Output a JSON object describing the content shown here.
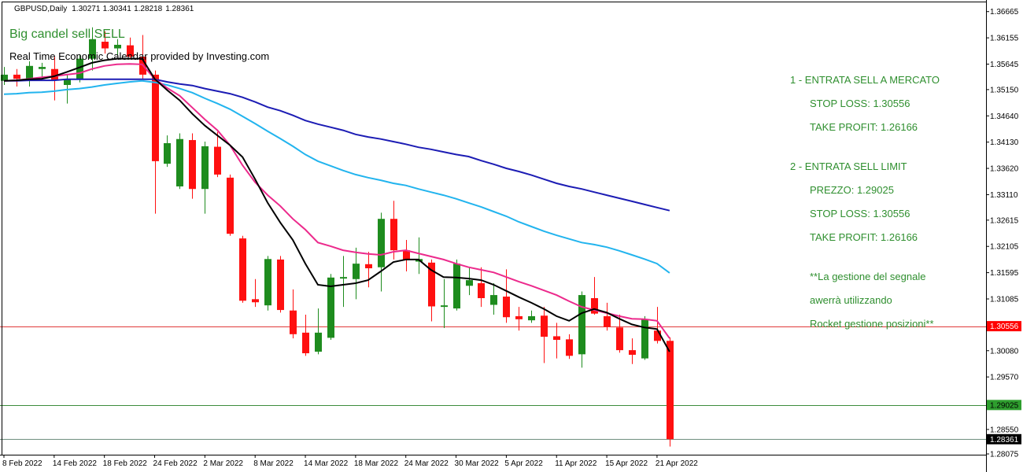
{
  "header": {
    "symbol": "GBPUSD,Daily",
    "ohlc": [
      1.30271,
      1.30341,
      1.28218,
      1.28361
    ]
  },
  "texts": {
    "signal": "Big candel sell SELL",
    "calendar": "Real Time Economic Calendar provided by Investing.com"
  },
  "annotations": [
    "1 - ENTRATA SELL A MERCATO",
    "STOP LOSS: 1.30556",
    "TAKE PROFIT: 1.26166",
    "2 - ENTRATA SELL LIMIT",
    "PREZZO: 1.29025",
    "STOP LOSS: 1.30556",
    "TAKE PROFIT: 1.26166",
    "**La gestione del segnale",
    "awerrà utilizzando",
    "Rocket gestione posizioni**"
  ],
  "chart_data": {
    "type": "candlestick",
    "categories": [
      "8 Feb 2022",
      null,
      null,
      null,
      "14 Feb 2022",
      null,
      null,
      null,
      "18 Feb 2022",
      null,
      null,
      null,
      "24 Feb 2022",
      null,
      null,
      null,
      "2 Mar 2022",
      null,
      null,
      null,
      "8 Mar 2022",
      null,
      null,
      null,
      "14 Mar 2022",
      null,
      null,
      null,
      "18 Mar 2022",
      null,
      null,
      null,
      "24 Mar 2022",
      null,
      null,
      null,
      "30 Mar 2022",
      null,
      null,
      null,
      "5 Apr 2022",
      null,
      null,
      null,
      "11 Apr 2022",
      null,
      null,
      null,
      "15 Apr 2022",
      null,
      null,
      null,
      "21 Apr 2022",
      null
    ],
    "open": [
      1.3532,
      1.3544,
      1.3536,
      1.3555,
      1.3555,
      1.3524,
      1.3534,
      1.3575,
      1.3608,
      1.3595,
      1.3601,
      1.3579,
      1.3544,
      1.3371,
      1.3327,
      1.3417,
      1.3322,
      1.3404,
      1.3344,
      1.3226,
      1.3108,
      1.3096,
      1.3185,
      1.3086,
      1.3043,
      1.3006,
      1.3033,
      1.3148,
      1.3147,
      1.3176,
      1.317,
      1.3264,
      1.3203,
      1.3181,
      1.3179,
      1.3093,
      1.309,
      1.3134,
      1.3139,
      1.3097,
      1.3113,
      1.3075,
      1.3067,
      1.3076,
      1.3036,
      1.303,
      1.3001,
      1.311,
      1.3075,
      1.3053,
      1.3009,
      1.2993,
      1.3047,
      1.30271
    ],
    "high": [
      1.3559,
      1.3555,
      1.357,
      1.3567,
      1.3579,
      1.3544,
      1.3582,
      1.3636,
      1.3628,
      1.3613,
      1.3616,
      1.3621,
      1.3552,
      1.3426,
      1.343,
      1.343,
      1.3414,
      1.3433,
      1.335,
      1.3231,
      1.3147,
      1.3192,
      1.3192,
      1.3127,
      1.3078,
      1.309,
      1.3157,
      1.3192,
      1.3208,
      1.32,
      1.3276,
      1.3299,
      1.3223,
      1.3228,
      1.3185,
      1.3147,
      1.3185,
      1.317,
      1.317,
      1.3139,
      1.3166,
      1.3093,
      1.3086,
      1.3093,
      1.3062,
      1.304,
      1.3123,
      1.3151,
      1.3101,
      1.3078,
      1.3032,
      1.3075,
      1.3093,
      1.30341
    ],
    "low": [
      1.3524,
      1.3521,
      1.3521,
      1.3536,
      1.3494,
      1.3488,
      1.3529,
      1.3552,
      1.3585,
      1.3582,
      1.3575,
      1.3536,
      1.3274,
      1.3365,
      1.3322,
      1.3303,
      1.3274,
      1.3345,
      1.3231,
      1.3101,
      1.3093,
      1.3086,
      1.3082,
      1.3032,
      1.2998,
      1.3001,
      1.3029,
      1.3093,
      1.3108,
      1.3131,
      1.3123,
      1.3185,
      1.3162,
      1.3157,
      1.3065,
      1.3052,
      1.3086,
      1.3116,
      1.3093,
      1.3078,
      1.3062,
      1.3047,
      1.3062,
      1.2984,
      1.2993,
      1.2992,
      1.2975,
      1.3078,
      1.3047,
      1.3004,
      1.2982,
      1.299,
      1.3022,
      1.28218
    ],
    "close": [
      1.3544,
      1.3536,
      1.3561,
      1.3559,
      1.3534,
      1.3534,
      1.3575,
      1.3613,
      1.3595,
      1.3602,
      1.3579,
      1.3544,
      1.3376,
      1.3411,
      1.3419,
      1.3322,
      1.3405,
      1.335,
      1.3235,
      1.3105,
      1.3102,
      1.3186,
      1.3087,
      1.304,
      1.3003,
      1.3043,
      1.315,
      1.3151,
      1.3177,
      1.3168,
      1.3264,
      1.3203,
      1.3185,
      1.3186,
      1.3094,
      1.3096,
      1.3177,
      1.3145,
      1.311,
      1.3116,
      1.3073,
      1.3069,
      1.3075,
      1.3035,
      1.3029,
      1.2998,
      1.3116,
      1.308,
      1.3054,
      1.3009,
      1.3,
      1.3069,
      1.3027,
      1.28361
    ],
    "up_color": "#1e8c1e",
    "down_color": "#ff1010",
    "overlays": [
      {
        "color": "#1c1cb4",
        "values": [
          1.3532,
          1.3532,
          1.3533,
          1.3533,
          1.3533,
          1.3535,
          1.3535,
          1.3535,
          1.3535,
          1.3535,
          1.3535,
          1.3535,
          1.3535,
          1.353,
          1.3526,
          1.3523,
          1.3517,
          1.3512,
          1.3507,
          1.35,
          1.3491,
          1.3481,
          1.3474,
          1.3465,
          1.3455,
          1.3448,
          1.3442,
          1.3436,
          1.3428,
          1.3423,
          1.3419,
          1.3414,
          1.3409,
          1.3403,
          1.3399,
          1.3394,
          1.3389,
          1.3385,
          1.3377,
          1.337,
          1.3362,
          1.3356,
          1.3349,
          1.3341,
          1.3333,
          1.3327,
          1.3322,
          1.3316,
          1.331,
          1.3304,
          1.3298,
          1.3292,
          1.3286,
          1.328
        ]
      },
      {
        "color": "#22b4ee",
        "values": [
          1.3506,
          1.3507,
          1.3509,
          1.351,
          1.3512,
          1.3515,
          1.3517,
          1.352,
          1.3524,
          1.3527,
          1.353,
          1.3532,
          1.3529,
          1.3524,
          1.3517,
          1.3509,
          1.3498,
          1.3488,
          1.3477,
          1.3463,
          1.3449,
          1.3434,
          1.342,
          1.3405,
          1.3389,
          1.3376,
          1.3367,
          1.3358,
          1.335,
          1.3344,
          1.3339,
          1.3333,
          1.3329,
          1.3322,
          1.3316,
          1.331,
          1.3303,
          1.3295,
          1.3287,
          1.3278,
          1.3269,
          1.3258,
          1.3249,
          1.324,
          1.3232,
          1.3225,
          1.3218,
          1.3214,
          1.3209,
          1.3202,
          1.3194,
          1.3186,
          1.3177,
          1.3159
        ]
      },
      {
        "color": "#ec2a8c",
        "values": [
          1.3532,
          1.3533,
          1.3536,
          1.3539,
          1.3541,
          1.3544,
          1.3547,
          1.3555,
          1.3561,
          1.3564,
          1.3565,
          1.3564,
          1.3536,
          1.3518,
          1.3503,
          1.348,
          1.3457,
          1.3436,
          1.3407,
          1.3368,
          1.3335,
          1.331,
          1.3289,
          1.3264,
          1.3243,
          1.3218,
          1.3211,
          1.3203,
          1.3199,
          1.3196,
          1.3194,
          1.32,
          1.3203,
          1.3197,
          1.3191,
          1.3185,
          1.3177,
          1.317,
          1.3165,
          1.316,
          1.3151,
          1.3142,
          1.3134,
          1.3125,
          1.3116,
          1.3104,
          1.3093,
          1.3087,
          1.3081,
          1.3075,
          1.307,
          1.3069,
          1.3066,
          1.3032
        ]
      },
      {
        "color": "#000000",
        "values": [
          1.3532,
          1.3533,
          1.3535,
          1.3536,
          1.3541,
          1.3549,
          1.3558,
          1.3567,
          1.3572,
          1.3575,
          1.3575,
          1.3575,
          1.3536,
          1.3514,
          1.3494,
          1.3468,
          1.3445,
          1.3426,
          1.3407,
          1.3384,
          1.3341,
          1.3295,
          1.3257,
          1.3223,
          1.3177,
          1.3136,
          1.3133,
          1.3136,
          1.3139,
          1.3145,
          1.3162,
          1.318,
          1.3185,
          1.3185,
          1.3165,
          1.3151,
          1.315,
          1.3148,
          1.3145,
          1.3136,
          1.3124,
          1.3112,
          1.3101,
          1.3089,
          1.3075,
          1.3066,
          1.3081,
          1.3089,
          1.3082,
          1.307,
          1.3059,
          1.3053,
          1.305,
          1.3006
        ]
      }
    ],
    "levels": [
      {
        "value": 1.30556,
        "color": "#e03a3a",
        "label_bg": "#ff0000",
        "label_color": "#ffffff"
      },
      {
        "value": 1.29025,
        "color": "#3c8c3c",
        "label_bg": "#2e9e2e",
        "label_color": "#000000"
      },
      {
        "value": 1.28361,
        "color": "#6f8f7f",
        "label_bg": "#000000",
        "label_color": "#ffffff"
      }
    ],
    "ylim": [
      1.2806,
      1.3689
    ],
    "yticks": [
      1.36665,
      1.36155,
      1.35645,
      {
        "value": 1.3515,
        "label": "1.35150"
      },
      {
        "value": 1.3464,
        "label": "1.34640"
      },
      {
        "value": 1.3413,
        "label": "1.34130"
      },
      {
        "value": 1.3362,
        "label": "1.33620"
      },
      {
        "value": 1.3311,
        "label": "1.33110"
      },
      1.32615,
      1.32105,
      1.31595,
      1.31085,
      {
        "value": 1.3008,
        "label": "1.30080"
      },
      {
        "value": 1.2957,
        "label": "1.29570"
      },
      {
        "value": 1.2855,
        "label": "1.28550"
      },
      1.28075
    ],
    "grid": false
  }
}
